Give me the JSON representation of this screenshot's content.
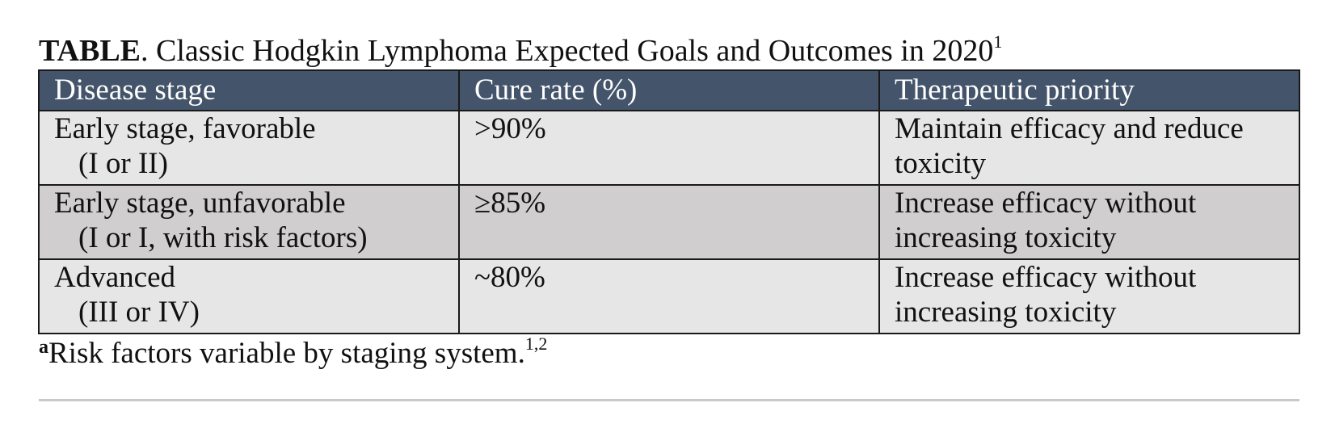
{
  "caption": {
    "label": "TABLE",
    "text": ". Classic Hodgkin Lymphoma Expected Goals and Outcomes in 2020",
    "ref": "1"
  },
  "table": {
    "headers": [
      "Disease stage",
      "Cure rate (%)",
      "Therapeutic priority"
    ],
    "rows": [
      {
        "stage_line1": "Early stage, favorable",
        "stage_line2": "(I or II)",
        "cure_rate": ">90%",
        "priority": "Maintain efficacy and reduce toxicity"
      },
      {
        "stage_line1": "Early stage, unfavorable",
        "stage_line2": "(I or I, with risk factors)",
        "cure_rate": "≥85%",
        "priority": "Increase efficacy without increasing toxicity"
      },
      {
        "stage_line1": "Advanced",
        "stage_line2": "(III or IV)",
        "cure_rate": "~80%",
        "priority": "Increase efficacy without increasing toxicity"
      }
    ],
    "colors": {
      "header_bg": "#44546a",
      "header_text": "#ffffff",
      "row_light": "#e7e6e6",
      "row_dark": "#d0cece"
    }
  },
  "footnote": {
    "mark": "a",
    "text": "Risk factors variable by staging system.",
    "ref": "1,2"
  }
}
